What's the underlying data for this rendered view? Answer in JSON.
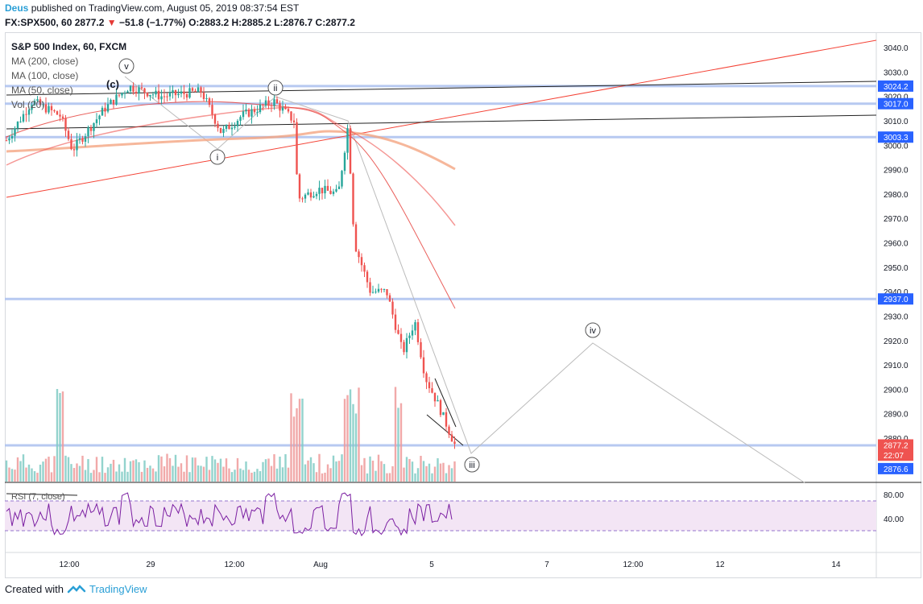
{
  "header": {
    "author": "Deus",
    "published_text": "published on TradingView.com, August 05, 2019 08:37:54 EST",
    "symbol_line_prefix": "FX:SPX500, 60",
    "last": "2877.2",
    "change_arrow": "▼",
    "change": "−51.8 (−1.77%)",
    "ohlc": "O:2883.2 H:2885.2 L:2876.7 C:2877.2"
  },
  "legend": {
    "title": "S&P 500 Index, 60, FXCM",
    "ma200": "MA (200, close)",
    "ma100": "MA (100, close)",
    "ma50": "MA (50, close)",
    "vol": "Vol (20)",
    "rsi": "RSI (7, close)"
  },
  "price_axis": {
    "ticks": [
      "3040.0",
      "3030.0",
      "3020.0",
      "3010.0",
      "3000.0",
      "2990.0",
      "2980.0",
      "2970.0",
      "2960.0",
      "2950.0",
      "2940.0",
      "2930.0",
      "2920.0",
      "2910.0",
      "2900.0",
      "2890.0",
      "2880.0"
    ],
    "tick_values": [
      3040,
      3030,
      3020,
      3010,
      3000,
      2990,
      2980,
      2970,
      2960,
      2950,
      2940,
      2930,
      2920,
      2910,
      2900,
      2890,
      2880
    ],
    "highlight_labels": [
      {
        "text": "3024.2",
        "value": 3024.2,
        "color": "#2962ff"
      },
      {
        "text": "3017.0",
        "value": 3017.0,
        "color": "#2962ff"
      },
      {
        "text": "3003.3",
        "value": 3003.3,
        "color": "#2962ff"
      },
      {
        "text": "2937.0",
        "value": 2937.0,
        "color": "#2962ff"
      },
      {
        "text": "2877.2",
        "value": 2877.2,
        "color": "#ef5350"
      },
      {
        "text": "22:07",
        "value": 2873.0,
        "color": "#ef5350"
      },
      {
        "text": "2876.6",
        "value": 2867.5,
        "color": "#2962ff"
      }
    ]
  },
  "rsi_axis": {
    "ticks": [
      "80.00",
      "40.00"
    ]
  },
  "time_axis": {
    "labels": [
      "12:00",
      "29",
      "12:00",
      "Aug",
      "5",
      "7",
      "12:00",
      "12",
      "14"
    ]
  },
  "wave_labels": [
    "(c)",
    "v",
    "ii",
    "i",
    "iii",
    "iv"
  ],
  "footer": {
    "created_with": "Created with",
    "brand": "TradingView"
  },
  "colors": {
    "up": "#26a69a",
    "down": "#ef5350",
    "hline": "#b0c4f0",
    "trend_red": "#f44336",
    "ma200": "#f4a582",
    "rsi_fill": "#f3e5f5",
    "rsi_line": "#7b1fa2"
  }
}
